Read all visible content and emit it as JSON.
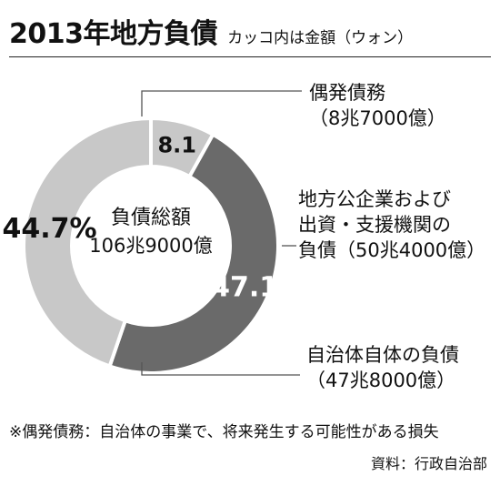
{
  "header": {
    "title": "2013年地方負債",
    "subtitle": "カッコ内は金額（ウォン）"
  },
  "chart_data": {
    "type": "pie",
    "donut": true,
    "center_label": [
      "負債総額",
      "106兆9000億"
    ],
    "slices": [
      {
        "value": 8.1,
        "label": "8.1",
        "color": "#c8c8c8",
        "annotation": [
          "偶発債務",
          "（8兆7000億）"
        ]
      },
      {
        "value": 47.1,
        "label": "47.1",
        "color": "#6a6a6a",
        "annotation": [
          "地方公企業および",
          "出資・支援機関の",
          "負債（50兆4000億）"
        ]
      },
      {
        "value": 44.7,
        "label": "44.7%",
        "color": "#c8c8c8",
        "annotation": [
          "自治体自体の負債",
          "（47兆8000億）"
        ]
      }
    ],
    "start": "12 o'clock",
    "direction": "clockwise",
    "separator_color": "#ffffff"
  },
  "footnote": "※偶発債務：自治体の事業で、将来発生する可能性がある損失",
  "source": "資料：行政自治部"
}
